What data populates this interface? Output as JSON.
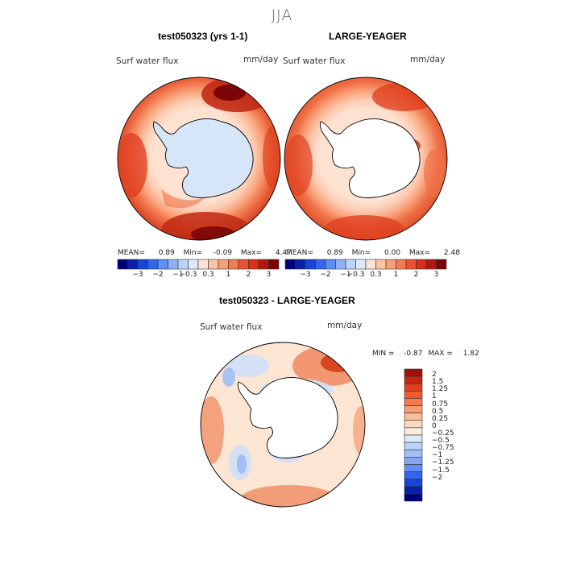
{
  "season": "JJA",
  "panels": [
    {
      "title": "test050323 (yrs 1-1)",
      "variable": "Surf water flux",
      "units": "mm/day",
      "stats": {
        "mean_label": "MEAN=",
        "mean": "0.89",
        "min_label": "Min=",
        "min": "-0.09",
        "max_label": "Max=",
        "max": "4.47"
      }
    },
    {
      "title": "LARGE-YEAGER",
      "variable": "Surf water flux",
      "units": "mm/day",
      "stats": {
        "mean_label": "MEAN=",
        "mean": "0.89",
        "min_label": "Min=",
        "min": "0.00",
        "max_label": "Max=",
        "max": "2.48"
      }
    }
  ],
  "horizontal_colorbar": {
    "colors": [
      "#00007a",
      "#0a1fa8",
      "#1845d6",
      "#3266f0",
      "#5f8ef5",
      "#8fb2f7",
      "#bcd3fa",
      "#ddeaf9",
      "#fde4d6",
      "#fcc3a5",
      "#f99f78",
      "#f47a52",
      "#ec5130",
      "#d9301c",
      "#b51510",
      "#7a0606"
    ],
    "tick_labels": [
      "-3",
      "-2",
      "-1",
      "-0.3",
      "0.3",
      "1",
      "2",
      "3"
    ]
  },
  "difference_panel": {
    "title": "test050323 - LARGE-YEAGER",
    "variable": "Surf water flux",
    "units": "mm/day",
    "min_label": "MIN =",
    "min": "-0.87",
    "max_label": "MAX =",
    "max": "1.82"
  },
  "vertical_colorbar": {
    "colors_top_to_bottom": [
      "#a00f0a",
      "#c52416",
      "#e0401f",
      "#f05a2e",
      "#f67a4a",
      "#f99c72",
      "#fbbc98",
      "#fdd8c3",
      "#fcecdf",
      "#dbe9f9",
      "#bcd3fa",
      "#a0bff6",
      "#85a7f2",
      "#5f8ef5",
      "#3266f0",
      "#1845d6",
      "#0a1fa8",
      "#00007a"
    ],
    "tick_labels": [
      "2",
      "1.5",
      "1.25",
      "1",
      "0.75",
      "0.5",
      "0.25",
      "0",
      "-0.25",
      "-0.5",
      "-0.75",
      "-1",
      "-1.25",
      "-1.5",
      "-2"
    ]
  },
  "map_colors": {
    "land_model": "#d6e6f8",
    "land_obs": "#ffffff",
    "ocean_deep": "#d6401f",
    "ocean_mid": "#f07248",
    "ocean_light": "#f9a37b",
    "ocean_pale": "#fccab0",
    "ocean_paler": "#fde2d2",
    "ocean_dark": "#a0190d",
    "diff_base": "#fde5d4",
    "diff_blue": "#cfe0f7",
    "diff_red": "#f08a60",
    "diff_dark_red": "#d9471f"
  }
}
